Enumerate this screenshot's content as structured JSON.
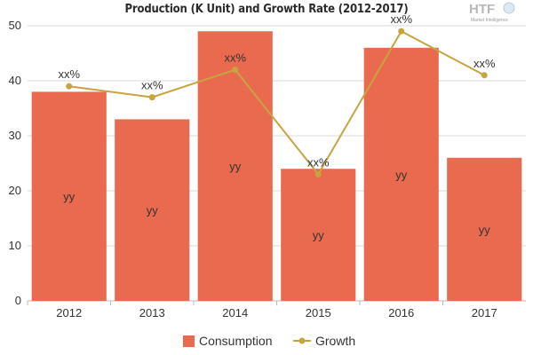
{
  "title": "Production (K Unit) and Growth Rate (2012-2017)",
  "logo": {
    "text": "HTF",
    "subtext": "Market Intelligence"
  },
  "colors": {
    "bar": "#e96a4f",
    "line": "#c8a43e",
    "grid": "#d9d9d9",
    "axis_text": "#333333"
  },
  "legend": [
    {
      "name": "Consumption",
      "kind": "bar"
    },
    {
      "name": "Growth",
      "kind": "line"
    }
  ],
  "chart_data": {
    "type": "bar",
    "title": "Production (K Unit) and Growth Rate (2012-2017)",
    "categories": [
      "2012",
      "2013",
      "2014",
      "2015",
      "2016",
      "2017"
    ],
    "ylim": [
      0,
      50
    ],
    "yticks": [
      0,
      10,
      20,
      30,
      40,
      50
    ],
    "grid": true,
    "legend_position": "bottom",
    "series": [
      {
        "name": "Consumption",
        "type": "bar",
        "values": [
          38,
          33,
          49,
          24,
          46,
          26
        ],
        "labels": [
          "yy",
          "yy",
          "yy",
          "yy",
          "yy",
          "yy"
        ]
      },
      {
        "name": "Growth",
        "type": "line",
        "values": [
          39,
          37,
          42,
          23,
          49,
          41
        ],
        "labels": [
          "xx%",
          "xx%",
          "xx%",
          "xx%",
          "xx%",
          "xx%"
        ]
      }
    ]
  }
}
